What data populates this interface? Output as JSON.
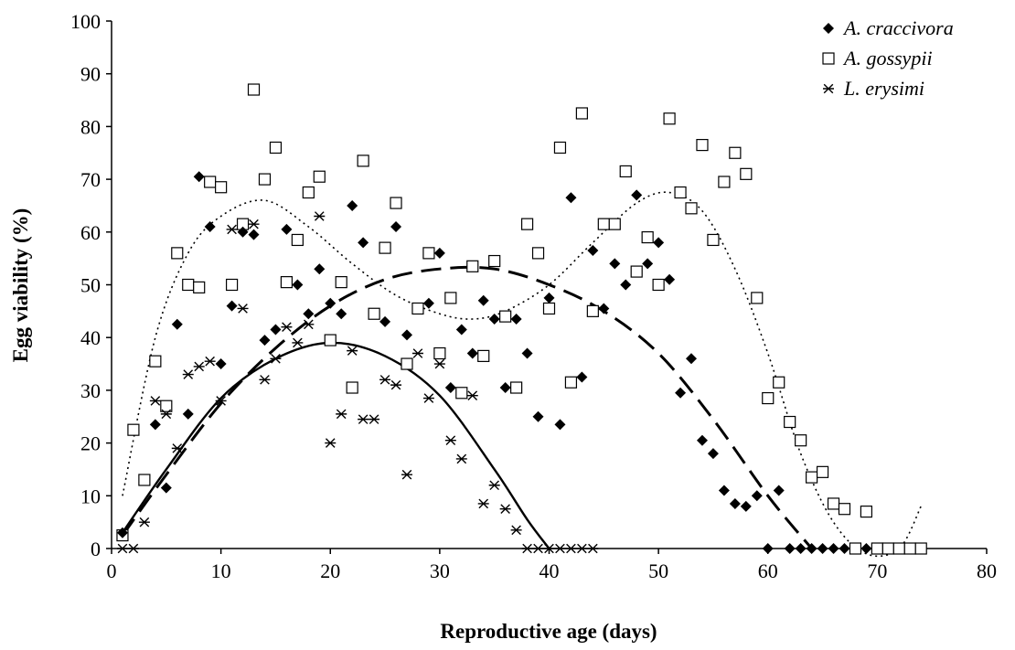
{
  "chart_data": {
    "type": "scatter",
    "title": "",
    "xlabel": "Reproductive age (days)",
    "ylabel": "Egg viability (%)",
    "xlim": [
      0,
      80
    ],
    "ylim": [
      0,
      100
    ],
    "x_ticks": [
      0,
      10,
      20,
      30,
      40,
      50,
      60,
      70,
      80
    ],
    "y_ticks": [
      0,
      10,
      20,
      30,
      40,
      50,
      60,
      70,
      80,
      90,
      100
    ],
    "grid": false,
    "legend_position": "top-right",
    "series": [
      {
        "name": "A. craccivora",
        "marker": "filled-diamond",
        "trend_style": "dashed",
        "points": [
          [
            1,
            3
          ],
          [
            4,
            23.5
          ],
          [
            5,
            11.5
          ],
          [
            6,
            42.5
          ],
          [
            7,
            25.5
          ],
          [
            8,
            70.5
          ],
          [
            9,
            61
          ],
          [
            10,
            35
          ],
          [
            11,
            46
          ],
          [
            12,
            60
          ],
          [
            13,
            59.5
          ],
          [
            14,
            39.5
          ],
          [
            15,
            41.5
          ],
          [
            16,
            60.5
          ],
          [
            17,
            50
          ],
          [
            18,
            44.5
          ],
          [
            19,
            53
          ],
          [
            20,
            46.5
          ],
          [
            21,
            44.5
          ],
          [
            22,
            65
          ],
          [
            23,
            58
          ],
          [
            25,
            43
          ],
          [
            26,
            61
          ],
          [
            27,
            40.5
          ],
          [
            29,
            46.5
          ],
          [
            30,
            56
          ],
          [
            31,
            30.5
          ],
          [
            32,
            41.5
          ],
          [
            33,
            37
          ],
          [
            34,
            47
          ],
          [
            35,
            43.5
          ],
          [
            36,
            30.5
          ],
          [
            37,
            43.5
          ],
          [
            38,
            37
          ],
          [
            39,
            25
          ],
          [
            40,
            47.5
          ],
          [
            41,
            23.5
          ],
          [
            42,
            66.5
          ],
          [
            43,
            32.5
          ],
          [
            44,
            56.5
          ],
          [
            45,
            45.5
          ],
          [
            46,
            54
          ],
          [
            47,
            50
          ],
          [
            48,
            67
          ],
          [
            49,
            54
          ],
          [
            50,
            58
          ],
          [
            51,
            51
          ],
          [
            52,
            29.5
          ],
          [
            53,
            36
          ],
          [
            54,
            20.5
          ],
          [
            55,
            18
          ],
          [
            56,
            11
          ],
          [
            57,
            8.5
          ],
          [
            58,
            8
          ],
          [
            59,
            10
          ],
          [
            60,
            0
          ],
          [
            61,
            11
          ],
          [
            62,
            0
          ],
          [
            63,
            0
          ],
          [
            64,
            0
          ],
          [
            65,
            0
          ],
          [
            66,
            0
          ],
          [
            67,
            0
          ],
          [
            69,
            0
          ]
        ],
        "trend": [
          [
            1,
            2.5
          ],
          [
            5,
            14
          ],
          [
            10,
            27.5
          ],
          [
            15,
            38
          ],
          [
            20,
            46
          ],
          [
            25,
            51
          ],
          [
            30,
            53
          ],
          [
            35,
            53
          ],
          [
            40,
            50
          ],
          [
            45,
            45
          ],
          [
            50,
            37
          ],
          [
            55,
            24.5
          ],
          [
            60,
            10
          ],
          [
            64,
            0
          ]
        ]
      },
      {
        "name": "A. gossypii",
        "marker": "open-square",
        "trend_style": "dotted",
        "points": [
          [
            1,
            2.5
          ],
          [
            2,
            22.5
          ],
          [
            3,
            13
          ],
          [
            4,
            35.5
          ],
          [
            5,
            27
          ],
          [
            6,
            56
          ],
          [
            7,
            50
          ],
          [
            8,
            49.5
          ],
          [
            9,
            69.5
          ],
          [
            10,
            68.5
          ],
          [
            11,
            50
          ],
          [
            12,
            61.5
          ],
          [
            13,
            87
          ],
          [
            14,
            70
          ],
          [
            15,
            76
          ],
          [
            16,
            50.5
          ],
          [
            17,
            58.5
          ],
          [
            18,
            67.5
          ],
          [
            19,
            70.5
          ],
          [
            20,
            39.5
          ],
          [
            21,
            50.5
          ],
          [
            22,
            30.5
          ],
          [
            23,
            73.5
          ],
          [
            24,
            44.5
          ],
          [
            25,
            57
          ],
          [
            26,
            65.5
          ],
          [
            27,
            35
          ],
          [
            28,
            45.5
          ],
          [
            29,
            56
          ],
          [
            30,
            37
          ],
          [
            31,
            47.5
          ],
          [
            32,
            29.5
          ],
          [
            33,
            53.5
          ],
          [
            34,
            36.5
          ],
          [
            35,
            54.5
          ],
          [
            36,
            44
          ],
          [
            37,
            30.5
          ],
          [
            38,
            61.5
          ],
          [
            39,
            56
          ],
          [
            40,
            45.5
          ],
          [
            41,
            76
          ],
          [
            42,
            31.5
          ],
          [
            43,
            82.5
          ],
          [
            44,
            45
          ],
          [
            45,
            61.5
          ],
          [
            46,
            61.5
          ],
          [
            47,
            71.5
          ],
          [
            48,
            52.5
          ],
          [
            49,
            59
          ],
          [
            50,
            50
          ],
          [
            51,
            81.5
          ],
          [
            52,
            67.5
          ],
          [
            53,
            64.5
          ],
          [
            54,
            76.5
          ],
          [
            55,
            58.5
          ],
          [
            56,
            69.5
          ],
          [
            57,
            75
          ],
          [
            58,
            71
          ],
          [
            59,
            47.5
          ],
          [
            60,
            28.5
          ],
          [
            61,
            31.5
          ],
          [
            62,
            24
          ],
          [
            63,
            20.5
          ],
          [
            64,
            13.5
          ],
          [
            65,
            14.5
          ],
          [
            66,
            8.5
          ],
          [
            67,
            7.5
          ],
          [
            68,
            0
          ],
          [
            69,
            7
          ],
          [
            70,
            0
          ],
          [
            71,
            0
          ],
          [
            72,
            0
          ],
          [
            73,
            0
          ],
          [
            74,
            0
          ]
        ],
        "trend": [
          [
            1,
            10
          ],
          [
            4,
            40
          ],
          [
            7,
            56
          ],
          [
            10,
            63
          ],
          [
            14,
            66
          ],
          [
            18,
            61
          ],
          [
            22,
            54
          ],
          [
            26,
            48
          ],
          [
            30,
            44.5
          ],
          [
            33,
            43.5
          ],
          [
            36,
            45
          ],
          [
            40,
            50
          ],
          [
            44,
            58
          ],
          [
            48,
            65.5
          ],
          [
            51,
            67.5
          ],
          [
            54,
            64
          ],
          [
            57,
            53
          ],
          [
            60,
            37
          ],
          [
            63,
            18
          ],
          [
            66,
            5
          ],
          [
            69,
            -1
          ],
          [
            72,
            0
          ],
          [
            74,
            8
          ]
        ]
      },
      {
        "name": "L. erysimi",
        "marker": "asterisk",
        "trend_style": "solid",
        "points": [
          [
            1,
            0
          ],
          [
            2,
            0
          ],
          [
            3,
            5
          ],
          [
            4,
            28
          ],
          [
            5,
            25.5
          ],
          [
            6,
            19
          ],
          [
            7,
            33
          ],
          [
            8,
            34.5
          ],
          [
            9,
            35.5
          ],
          [
            10,
            28
          ],
          [
            11,
            60.5
          ],
          [
            12,
            45.5
          ],
          [
            13,
            61.5
          ],
          [
            14,
            32
          ],
          [
            15,
            36
          ],
          [
            16,
            42
          ],
          [
            17,
            39
          ],
          [
            18,
            42.5
          ],
          [
            19,
            63
          ],
          [
            20,
            20
          ],
          [
            21,
            25.5
          ],
          [
            22,
            37.5
          ],
          [
            23,
            24.5
          ],
          [
            24,
            24.5
          ],
          [
            25,
            32
          ],
          [
            26,
            31
          ],
          [
            27,
            14
          ],
          [
            28,
            37
          ],
          [
            29,
            28.5
          ],
          [
            30,
            35
          ],
          [
            31,
            20.5
          ],
          [
            32,
            17
          ],
          [
            33,
            29
          ],
          [
            34,
            8.5
          ],
          [
            35,
            12
          ],
          [
            36,
            7.5
          ],
          [
            37,
            3.5
          ],
          [
            38,
            0
          ],
          [
            39,
            0
          ],
          [
            40,
            0
          ],
          [
            41,
            0
          ],
          [
            42,
            0
          ],
          [
            43,
            0
          ],
          [
            44,
            0
          ]
        ],
        "trend": [
          [
            1,
            3
          ],
          [
            5,
            15
          ],
          [
            10,
            28.5
          ],
          [
            15,
            36
          ],
          [
            20,
            39
          ],
          [
            25,
            36.5
          ],
          [
            30,
            29
          ],
          [
            35,
            15
          ],
          [
            38,
            5.5
          ],
          [
            40,
            0
          ]
        ]
      }
    ]
  }
}
